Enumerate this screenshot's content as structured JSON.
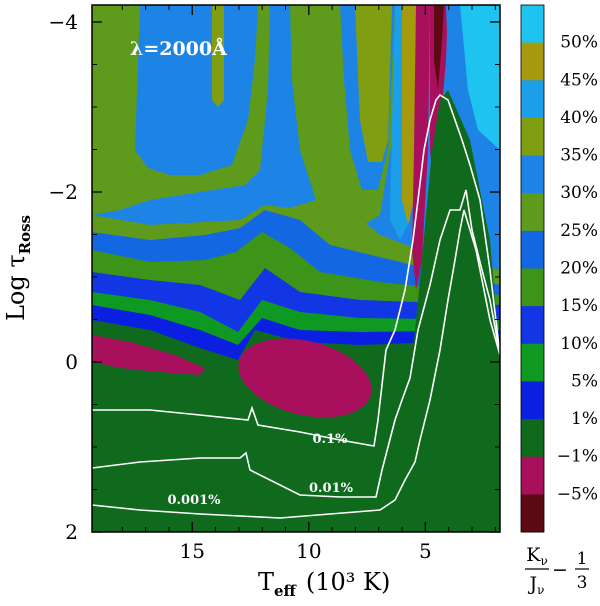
{
  "chart_data": {
    "type": "heatmap",
    "annotation": "λ=2000Å",
    "xlabel": "T",
    "xlabel_sub": "eff",
    "xlabel_units": "(10³ K)",
    "ylabel": "Log τ",
    "ylabel_sub": "Ross",
    "x_range": [
      19.3,
      1.8
    ],
    "y_range": [
      2.0,
      -4.2
    ],
    "x_ticks": [
      15,
      10,
      5
    ],
    "y_ticks": [
      -4,
      -2,
      0,
      2
    ],
    "x_tick_labels": [
      "15",
      "10",
      "5"
    ],
    "y_tick_labels": [
      "−4",
      "−2",
      "0",
      "2"
    ],
    "colorbar": {
      "levels": [
        {
          "label": "50%",
          "color": "#1ec3f0"
        },
        {
          "label": "45%",
          "color": "#a59a0d"
        },
        {
          "label": "40%",
          "color": "#1a9fe8"
        },
        {
          "label": "35%",
          "color": "#7f9e12"
        },
        {
          "label": "30%",
          "color": "#1d84e6"
        },
        {
          "label": "25%",
          "color": "#5e9a1c"
        },
        {
          "label": "20%",
          "color": "#1467e2"
        },
        {
          "label": "15%",
          "color": "#3c9418"
        },
        {
          "label": "10%",
          "color": "#1336e4"
        },
        {
          "label": "5%",
          "color": "#0e9a22"
        },
        {
          "label": "1%",
          "color": "#0a1fe0"
        },
        {
          "label": "−1%",
          "color": "#0f6a1e"
        },
        {
          "label": "−5%",
          "color": "#a8105e"
        },
        {
          "label": "",
          "color": "#5e0a14"
        }
      ],
      "quantity": "K_ν/J_ν − 1/3",
      "numerator": "K",
      "denominator": "J",
      "subscript": "ν",
      "minus": "−",
      "frac_num": "1",
      "frac_den": "3"
    },
    "contour_labels": [
      "0.1%",
      "0.01%",
      "0.001%"
    ]
  }
}
